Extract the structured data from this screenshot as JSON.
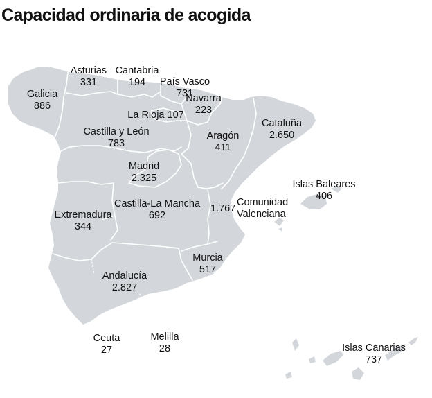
{
  "title": "Capacidad ordinaria de acogida",
  "colors": {
    "land": "#d3d7dc",
    "border": "#ffffff",
    "text": "#111111"
  },
  "regions": [
    {
      "id": "galicia",
      "name": "Galicia",
      "value": "886"
    },
    {
      "id": "asturias",
      "name": "Asturias",
      "value": "331"
    },
    {
      "id": "cantabria",
      "name": "Cantabria",
      "value": "194"
    },
    {
      "id": "pais-vasco",
      "name": "País Vasco",
      "value": "731"
    },
    {
      "id": "navarra",
      "name": "Navarra",
      "value": "223"
    },
    {
      "id": "la-rioja",
      "name": "La Rioja",
      "value": "107"
    },
    {
      "id": "castilla-y-leon",
      "name": "Castilla y León",
      "value": "783"
    },
    {
      "id": "cataluna",
      "name": "Cataluña",
      "value": "2.650"
    },
    {
      "id": "aragon",
      "name": "Aragón",
      "value": "411"
    },
    {
      "id": "madrid",
      "name": "Madrid",
      "value": "2.325"
    },
    {
      "id": "islas-baleares",
      "name": "Islas Baleares",
      "value": "406"
    },
    {
      "id": "castilla-la-mancha",
      "name": "Castilla-La Mancha",
      "value": "692"
    },
    {
      "id": "comunidad-valenciana",
      "name": "Comunidad Valenciana",
      "name_lines": [
        "Comunidad",
        "Valenciana"
      ],
      "value": "1.767"
    },
    {
      "id": "extremadura",
      "name": "Extremadura",
      "value": "344"
    },
    {
      "id": "murcia",
      "name": "Murcia",
      "value": "517"
    },
    {
      "id": "andalucia",
      "name": "Andalucía",
      "value": "2.827"
    },
    {
      "id": "ceuta",
      "name": "Ceuta",
      "value": "27"
    },
    {
      "id": "melilla",
      "name": "Melilla",
      "value": "28"
    },
    {
      "id": "islas-canarias",
      "name": "Islas Canarias",
      "value": "737"
    }
  ]
}
